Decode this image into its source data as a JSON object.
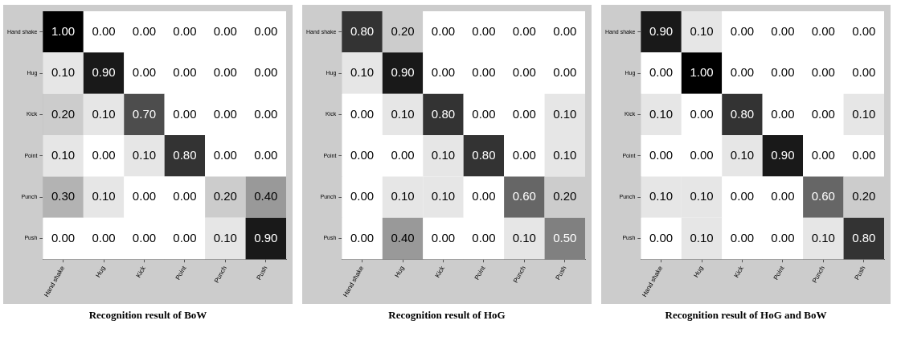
{
  "chart_data": [
    {
      "type": "heatmap",
      "title": "Recognition result of BoW",
      "categories": [
        "Hand shake",
        "Hug",
        "Kick",
        "Point",
        "Punch",
        "Push"
      ],
      "y_categories": [
        "Hand shake",
        "Hug",
        "Kick",
        "Point",
        "Punch",
        "Push"
      ],
      "cells": [
        [
          1.0,
          0.0,
          0.0,
          0.0,
          0.0,
          0.0
        ],
        [
          0.1,
          0.9,
          0.0,
          0.0,
          0.0,
          0.0
        ],
        [
          0.2,
          0.1,
          0.7,
          0.0,
          0.0,
          0.0
        ],
        [
          0.1,
          0.0,
          0.1,
          0.8,
          0.0,
          0.0
        ],
        [
          0.3,
          0.1,
          0.0,
          0.0,
          0.2,
          0.4
        ],
        [
          0.0,
          0.0,
          0.0,
          0.0,
          0.1,
          0.9
        ]
      ],
      "cell_labels": [
        [
          "1.00",
          "0.00",
          "0.00",
          "0.00",
          "0.00",
          "0.00"
        ],
        [
          "0.10",
          "0.90",
          "0.00",
          "0.00",
          "0.00",
          "0.00"
        ],
        [
          "0.20",
          "0.10",
          "0.70",
          "0.00",
          "0.00",
          "0.00"
        ],
        [
          "0.10",
          "0.00",
          "0.10",
          "0.80",
          "0.00",
          "0.00"
        ],
        [
          "0.30",
          "0.10",
          "0.00",
          "0.00",
          "0.20",
          "0.40"
        ],
        [
          "0.00",
          "0.00",
          "0.00",
          "0.00",
          "0.10",
          "0.90"
        ]
      ]
    },
    {
      "type": "heatmap",
      "title": "Recognition result of HoG",
      "categories": [
        "Hand shake",
        "Hug",
        "Kick",
        "Point",
        "Punch",
        "Push"
      ],
      "y_categories": [
        "Hand shake",
        "Hug",
        "Kick",
        "Point",
        "Punch",
        "Push"
      ],
      "cells": [
        [
          0.8,
          0.2,
          0.0,
          0.0,
          0.0,
          0.0
        ],
        [
          0.1,
          0.9,
          0.0,
          0.0,
          0.0,
          0.0
        ],
        [
          0.0,
          0.1,
          0.8,
          0.0,
          0.0,
          0.1
        ],
        [
          0.0,
          0.0,
          0.1,
          0.8,
          0.0,
          0.1
        ],
        [
          0.0,
          0.1,
          0.1,
          0.0,
          0.6,
          0.2
        ],
        [
          0.0,
          0.4,
          0.0,
          0.0,
          0.1,
          0.5
        ]
      ],
      "cell_labels": [
        [
          "0.80",
          "0.20",
          "0.00",
          "0.00",
          "0.00",
          "0.00"
        ],
        [
          "0.10",
          "0.90",
          "0.00",
          "0.00",
          "0.00",
          "0.00"
        ],
        [
          "0.00",
          "0.10",
          "0.80",
          "0.00",
          "0.00",
          "0.10"
        ],
        [
          "0.00",
          "0.00",
          "0.10",
          "0.80",
          "0.00",
          "0.10"
        ],
        [
          "0.00",
          "0.10",
          "0.10",
          "0.00",
          "0.60",
          "0.20"
        ],
        [
          "0.00",
          "0.40",
          "0.00",
          "0.00",
          "0.10",
          "0.50"
        ]
      ]
    },
    {
      "type": "heatmap",
      "title": "Recognition result of HoG and BoW",
      "categories": [
        "Hand shake",
        "Hug",
        "Kick",
        "Point",
        "Punch",
        "Push"
      ],
      "y_categories": [
        "Hand shake",
        "Hug",
        "Kick",
        "Point",
        "Punch",
        "Push"
      ],
      "cells": [
        [
          0.9,
          0.1,
          0.0,
          0.0,
          0.0,
          0.0
        ],
        [
          0.0,
          1.0,
          0.0,
          0.0,
          0.0,
          0.0
        ],
        [
          0.1,
          0.0,
          0.8,
          0.0,
          0.0,
          0.1
        ],
        [
          0.0,
          0.0,
          0.1,
          0.9,
          0.0,
          0.0
        ],
        [
          0.1,
          0.1,
          0.0,
          0.0,
          0.6,
          0.2
        ],
        [
          0.0,
          0.1,
          0.0,
          0.0,
          0.1,
          0.8
        ]
      ],
      "cell_labels": [
        [
          "0.90",
          "0.10",
          "0.00",
          "0.00",
          "0.00",
          "0.00"
        ],
        [
          "0.00",
          "1.00",
          "0.00",
          "0.00",
          "0.00",
          "0.00"
        ],
        [
          "0.10",
          "0.00",
          "0.80",
          "0.00",
          "0.00",
          "0.10"
        ],
        [
          "0.00",
          "0.00",
          "0.10",
          "0.90",
          "0.00",
          "0.00"
        ],
        [
          "0.10",
          "0.10",
          "0.00",
          "0.00",
          "0.60",
          "0.20"
        ],
        [
          "0.00",
          "0.10",
          "0.00",
          "0.00",
          "0.10",
          "0.80"
        ]
      ]
    }
  ]
}
